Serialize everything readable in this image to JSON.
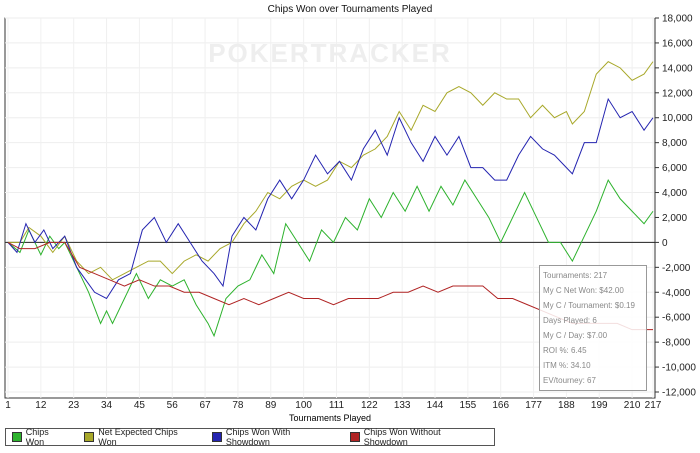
{
  "watermark": "POKERTRACKER",
  "chart_data": {
    "type": "line",
    "title": "Chips Won over Tournaments Played",
    "xlabel": "Tournaments Played",
    "ylabel": "",
    "xlim": [
      1,
      217
    ],
    "ylim": [
      -12000,
      18000
    ],
    "x_ticks": [
      1,
      12,
      23,
      34,
      45,
      56,
      67,
      78,
      89,
      100,
      111,
      122,
      133,
      144,
      155,
      166,
      177,
      188,
      199,
      210,
      217
    ],
    "y_ticks": [
      -12000,
      -10000,
      -8000,
      -6000,
      -4000,
      -2000,
      0,
      2000,
      4000,
      6000,
      8000,
      10000,
      12000,
      14000,
      16000,
      18000
    ],
    "y_tick_labels": [
      "-12,000",
      "-10,000",
      "-8,000",
      "-6,000",
      "-4,000",
      "-2,000",
      "0",
      "2,000",
      "4,000",
      "6,000",
      "8,000",
      "10,000",
      "12,000",
      "14,000",
      "16,000",
      "18,000"
    ],
    "grid": true,
    "legend_placement": "bottom",
    "series": [
      {
        "name": "Chips Won",
        "color": "#2db22d",
        "points": [
          [
            1,
            0
          ],
          [
            5,
            -800
          ],
          [
            8,
            1000
          ],
          [
            12,
            -1000
          ],
          [
            15,
            500
          ],
          [
            18,
            -500
          ],
          [
            20,
            0
          ],
          [
            24,
            -2000
          ],
          [
            28,
            -4000
          ],
          [
            32,
            -6500
          ],
          [
            34,
            -5500
          ],
          [
            36,
            -6500
          ],
          [
            40,
            -4500
          ],
          [
            44,
            -2500
          ],
          [
            48,
            -4500
          ],
          [
            52,
            -3000
          ],
          [
            56,
            -3500
          ],
          [
            60,
            -3000
          ],
          [
            64,
            -5000
          ],
          [
            68,
            -6500
          ],
          [
            70,
            -7500
          ],
          [
            74,
            -4500
          ],
          [
            78,
            -3500
          ],
          [
            82,
            -3000
          ],
          [
            86,
            -1000
          ],
          [
            90,
            -2500
          ],
          [
            94,
            1500
          ],
          [
            98,
            0
          ],
          [
            102,
            -1500
          ],
          [
            106,
            1000
          ],
          [
            110,
            0
          ],
          [
            114,
            2000
          ],
          [
            118,
            1000
          ],
          [
            122,
            3500
          ],
          [
            126,
            2000
          ],
          [
            130,
            4000
          ],
          [
            134,
            2500
          ],
          [
            138,
            4500
          ],
          [
            142,
            2500
          ],
          [
            146,
            4500
          ],
          [
            150,
            3000
          ],
          [
            154,
            5000
          ],
          [
            158,
            3500
          ],
          [
            162,
            2000
          ],
          [
            166,
            0
          ],
          [
            170,
            2000
          ],
          [
            174,
            4000
          ],
          [
            178,
            2000
          ],
          [
            182,
            0
          ],
          [
            186,
            0
          ],
          [
            190,
            -1500
          ],
          [
            194,
            500
          ],
          [
            198,
            2500
          ],
          [
            202,
            5000
          ],
          [
            206,
            3500
          ],
          [
            210,
            2500
          ],
          [
            214,
            1500
          ],
          [
            217,
            2500
          ]
        ]
      },
      {
        "name": "Net Expected Chips Won",
        "color": "#a8a82a",
        "points": [
          [
            1,
            0
          ],
          [
            5,
            0
          ],
          [
            8,
            1200
          ],
          [
            12,
            500
          ],
          [
            16,
            -800
          ],
          [
            20,
            500
          ],
          [
            24,
            -1500
          ],
          [
            28,
            -2500
          ],
          [
            32,
            -2000
          ],
          [
            36,
            -3000
          ],
          [
            40,
            -2500
          ],
          [
            44,
            -2000
          ],
          [
            48,
            -1500
          ],
          [
            52,
            -1500
          ],
          [
            56,
            -2500
          ],
          [
            60,
            -1500
          ],
          [
            64,
            -1000
          ],
          [
            68,
            -1500
          ],
          [
            72,
            -500
          ],
          [
            76,
            0
          ],
          [
            80,
            1500
          ],
          [
            84,
            2500
          ],
          [
            88,
            4000
          ],
          [
            92,
            3500
          ],
          [
            96,
            4500
          ],
          [
            100,
            5000
          ],
          [
            104,
            4500
          ],
          [
            108,
            5000
          ],
          [
            112,
            6500
          ],
          [
            116,
            6000
          ],
          [
            120,
            7000
          ],
          [
            124,
            7500
          ],
          [
            128,
            8500
          ],
          [
            132,
            10500
          ],
          [
            136,
            9000
          ],
          [
            140,
            11000
          ],
          [
            144,
            10500
          ],
          [
            148,
            12000
          ],
          [
            152,
            12500
          ],
          [
            156,
            12000
          ],
          [
            160,
            11000
          ],
          [
            164,
            12000
          ],
          [
            168,
            11500
          ],
          [
            172,
            11500
          ],
          [
            176,
            10000
          ],
          [
            180,
            11000
          ],
          [
            184,
            10000
          ],
          [
            188,
            10500
          ],
          [
            190,
            9500
          ],
          [
            194,
            10500
          ],
          [
            198,
            13500
          ],
          [
            202,
            14500
          ],
          [
            206,
            14000
          ],
          [
            210,
            13000
          ],
          [
            214,
            13500
          ],
          [
            217,
            14500
          ]
        ]
      },
      {
        "name": "Chips Won With Showdown",
        "color": "#2424b0",
        "points": [
          [
            1,
            0
          ],
          [
            4,
            -800
          ],
          [
            7,
            1500
          ],
          [
            10,
            0
          ],
          [
            13,
            1000
          ],
          [
            16,
            -500
          ],
          [
            20,
            500
          ],
          [
            24,
            -2000
          ],
          [
            30,
            -4000
          ],
          [
            34,
            -4500
          ],
          [
            38,
            -3000
          ],
          [
            42,
            -2500
          ],
          [
            46,
            1000
          ],
          [
            50,
            2000
          ],
          [
            54,
            0
          ],
          [
            58,
            1500
          ],
          [
            62,
            0
          ],
          [
            66,
            -1500
          ],
          [
            70,
            -2500
          ],
          [
            73,
            -3500
          ],
          [
            76,
            500
          ],
          [
            80,
            2000
          ],
          [
            84,
            1000
          ],
          [
            88,
            3500
          ],
          [
            92,
            5000
          ],
          [
            96,
            3500
          ],
          [
            100,
            5000
          ],
          [
            104,
            7000
          ],
          [
            108,
            5500
          ],
          [
            112,
            6500
          ],
          [
            116,
            5000
          ],
          [
            120,
            7500
          ],
          [
            124,
            9000
          ],
          [
            128,
            7000
          ],
          [
            132,
            10000
          ],
          [
            136,
            8000
          ],
          [
            140,
            6500
          ],
          [
            144,
            8500
          ],
          [
            148,
            7000
          ],
          [
            152,
            8500
          ],
          [
            156,
            6000
          ],
          [
            160,
            6000
          ],
          [
            164,
            5000
          ],
          [
            168,
            5000
          ],
          [
            172,
            7000
          ],
          [
            176,
            8500
          ],
          [
            180,
            7500
          ],
          [
            184,
            7000
          ],
          [
            188,
            6000
          ],
          [
            190,
            5500
          ],
          [
            194,
            8000
          ],
          [
            198,
            8000
          ],
          [
            202,
            11500
          ],
          [
            206,
            10000
          ],
          [
            210,
            10500
          ],
          [
            214,
            9000
          ],
          [
            217,
            10000
          ]
        ]
      },
      {
        "name": "Chips Won Without Showdown",
        "color": "#b02424",
        "points": [
          [
            1,
            0
          ],
          [
            5,
            -500
          ],
          [
            10,
            -500
          ],
          [
            15,
            0
          ],
          [
            20,
            0
          ],
          [
            25,
            -2000
          ],
          [
            30,
            -2500
          ],
          [
            35,
            -3000
          ],
          [
            40,
            -3500
          ],
          [
            45,
            -3000
          ],
          [
            50,
            -3500
          ],
          [
            55,
            -3500
          ],
          [
            60,
            -4000
          ],
          [
            65,
            -4000
          ],
          [
            70,
            -4500
          ],
          [
            75,
            -5000
          ],
          [
            80,
            -4500
          ],
          [
            85,
            -5000
          ],
          [
            90,
            -4500
          ],
          [
            95,
            -4000
          ],
          [
            100,
            -4500
          ],
          [
            105,
            -4500
          ],
          [
            110,
            -5000
          ],
          [
            115,
            -4500
          ],
          [
            120,
            -4500
          ],
          [
            125,
            -4500
          ],
          [
            130,
            -4000
          ],
          [
            135,
            -4000
          ],
          [
            140,
            -3500
          ],
          [
            145,
            -4000
          ],
          [
            150,
            -3500
          ],
          [
            155,
            -3500
          ],
          [
            160,
            -3500
          ],
          [
            165,
            -4500
          ],
          [
            170,
            -4500
          ],
          [
            175,
            -5000
          ],
          [
            180,
            -5500
          ],
          [
            185,
            -6000
          ],
          [
            190,
            -6500
          ],
          [
            195,
            -6500
          ],
          [
            200,
            -6500
          ],
          [
            205,
            -6500
          ],
          [
            210,
            -7000
          ],
          [
            215,
            -7000
          ],
          [
            217,
            -7000
          ]
        ]
      }
    ]
  },
  "info_box": [
    "Tournaments: 217",
    "My C Net Won: $42.00",
    "My C / Tournament: $0.19",
    "Days Played: 6",
    "My C / Day: $7.00",
    "ROI %: 6.45",
    "ITM %: 34.10",
    "EV/tourney: 67"
  ]
}
